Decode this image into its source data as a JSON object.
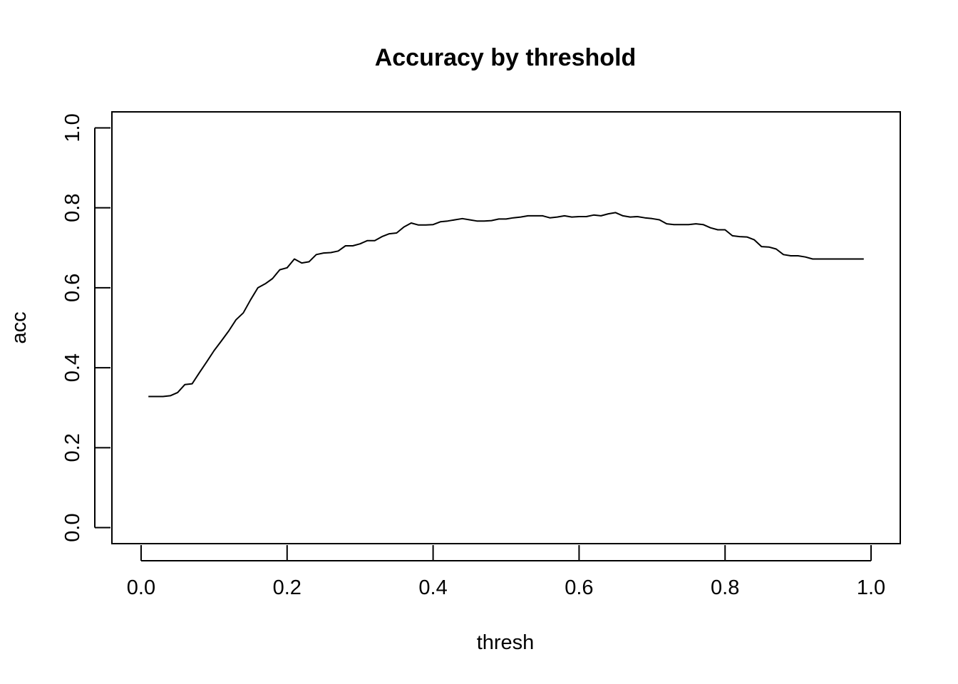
{
  "chart_data": {
    "type": "line",
    "title": "Accuracy by threshold",
    "xlabel": "thresh",
    "ylabel": "acc",
    "xlim": [
      -0.04,
      1.04
    ],
    "ylim": [
      -0.04,
      1.04
    ],
    "xticks": [
      0.0,
      0.2,
      0.4,
      0.6,
      0.8,
      1.0
    ],
    "xtick_labels": [
      "0.0",
      "0.2",
      "0.4",
      "0.6",
      "0.8",
      "1.0"
    ],
    "yticks": [
      0.0,
      0.2,
      0.4,
      0.6,
      0.8,
      1.0
    ],
    "ytick_labels": [
      "0.0",
      "0.2",
      "0.4",
      "0.6",
      "0.8",
      "1.0"
    ],
    "grid": false,
    "series": [
      {
        "color": "#000000",
        "x": [
          0.01,
          0.02,
          0.03,
          0.04,
          0.05,
          0.06,
          0.07,
          0.08,
          0.09,
          0.1,
          0.11,
          0.12,
          0.13,
          0.14,
          0.15,
          0.16,
          0.17,
          0.18,
          0.19,
          0.2,
          0.21,
          0.22,
          0.23,
          0.24,
          0.25,
          0.26,
          0.27,
          0.28,
          0.29,
          0.3,
          0.31,
          0.32,
          0.33,
          0.34,
          0.35,
          0.36,
          0.37,
          0.38,
          0.39,
          0.4,
          0.41,
          0.42,
          0.43,
          0.44,
          0.45,
          0.46,
          0.47,
          0.48,
          0.49,
          0.5,
          0.51,
          0.52,
          0.53,
          0.54,
          0.55,
          0.56,
          0.57,
          0.58,
          0.59,
          0.6,
          0.61,
          0.62,
          0.63,
          0.64,
          0.65,
          0.66,
          0.67,
          0.68,
          0.69,
          0.7,
          0.71,
          0.72,
          0.73,
          0.74,
          0.75,
          0.76,
          0.77,
          0.78,
          0.79,
          0.8,
          0.81,
          0.82,
          0.83,
          0.84,
          0.85,
          0.86,
          0.87,
          0.88,
          0.89,
          0.9,
          0.91,
          0.92,
          0.93,
          0.94,
          0.95,
          0.96,
          0.97,
          0.98,
          0.99
        ],
        "y": [
          0.328,
          0.328,
          0.328,
          0.33,
          0.338,
          0.358,
          0.36,
          0.388,
          0.415,
          0.443,
          0.467,
          0.492,
          0.52,
          0.537,
          0.57,
          0.6,
          0.61,
          0.623,
          0.645,
          0.65,
          0.672,
          0.662,
          0.665,
          0.683,
          0.687,
          0.688,
          0.692,
          0.705,
          0.705,
          0.71,
          0.718,
          0.718,
          0.728,
          0.735,
          0.737,
          0.752,
          0.762,
          0.757,
          0.757,
          0.758,
          0.765,
          0.767,
          0.77,
          0.773,
          0.77,
          0.767,
          0.767,
          0.768,
          0.772,
          0.772,
          0.775,
          0.777,
          0.78,
          0.78,
          0.78,
          0.775,
          0.777,
          0.78,
          0.777,
          0.778,
          0.778,
          0.782,
          0.78,
          0.785,
          0.788,
          0.78,
          0.777,
          0.778,
          0.775,
          0.773,
          0.77,
          0.76,
          0.758,
          0.758,
          0.758,
          0.76,
          0.758,
          0.75,
          0.745,
          0.745,
          0.73,
          0.728,
          0.727,
          0.72,
          0.703,
          0.702,
          0.697,
          0.683,
          0.68,
          0.68,
          0.677,
          0.672,
          0.672,
          0.672,
          0.672,
          0.672,
          0.672,
          0.672,
          0.672
        ]
      }
    ]
  }
}
